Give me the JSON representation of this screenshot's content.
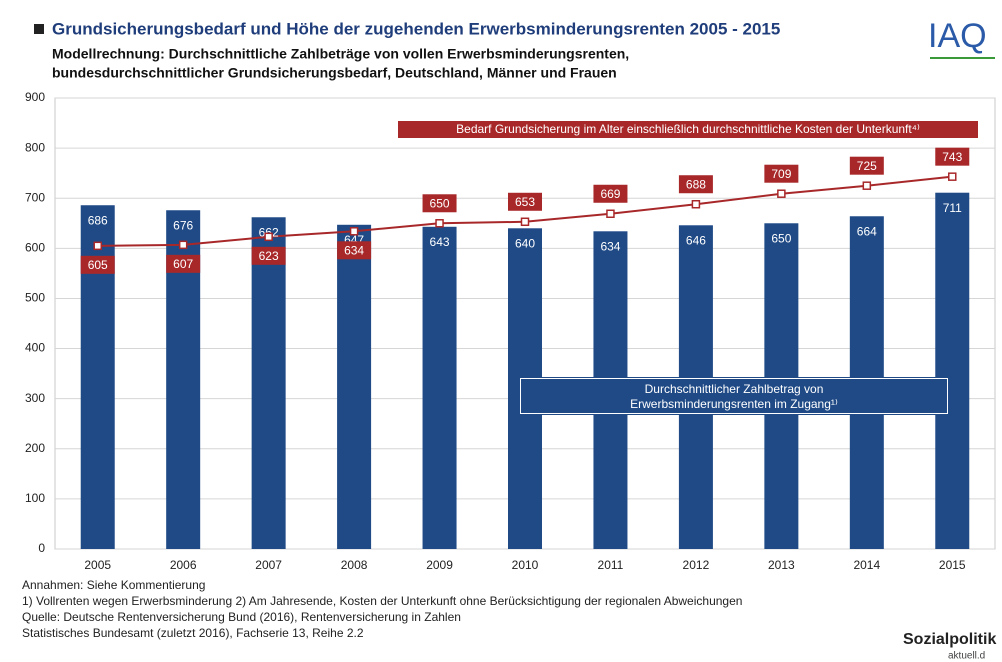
{
  "chart_data": {
    "type": "bar",
    "title": "Grundsicherungsbedarf und Höhe der zugehenden Erwerbsminderungsrenten 2005 - 2015",
    "subtitle": [
      "Modellrechnung: Durchschnittliche Zahlbeträge von vollen Erwerbsminderungsrenten,",
      "bundesdurchschnittlicher Grundsicherungsbedarf, Deutschland, Männer und Frauen"
    ],
    "categories": [
      "2005",
      "2006",
      "2007",
      "2008",
      "2009",
      "2010",
      "2011",
      "2012",
      "2013",
      "2014",
      "2015"
    ],
    "series": [
      {
        "name": "Durchschnittlicher Zahlbetrag von Erwerbsminderungsrenten im Zugang¹⁾",
        "type": "bar",
        "color": "#1f4a86",
        "values": [
          686,
          676,
          662,
          647,
          643,
          640,
          634,
          646,
          650,
          664,
          711
        ]
      },
      {
        "name": "Bedarf Grundsicherung im Alter einschließlich durchschnittliche Kosten der Unterkunft⁴⁾",
        "type": "line",
        "color": "#a8282a",
        "values": [
          605,
          607,
          623,
          634,
          650,
          653,
          669,
          688,
          709,
          725,
          743
        ]
      }
    ],
    "ylim": [
      0,
      900
    ],
    "yticks": [
      0,
      100,
      200,
      300,
      400,
      500,
      600,
      700,
      800,
      900
    ],
    "grid": true,
    "notes": [
      "Annahmen: Siehe Kommentierung",
      "1) Vollrenten wegen Erwerbsminderung  2) Am Jahresende, Kosten der Unterkunft ohne Berücksichtigung der regionalen Abweichungen",
      "Quelle: Deutsche Rentenversicherung Bund (2016), Rentenversicherung in Zahlen",
      "Statistisches Bundesamt (zuletzt 2016), Fachserie 13, Reihe 2.2"
    ],
    "logos": [
      "IAQ",
      "Sozialpolitik",
      "aktuell.d"
    ]
  }
}
